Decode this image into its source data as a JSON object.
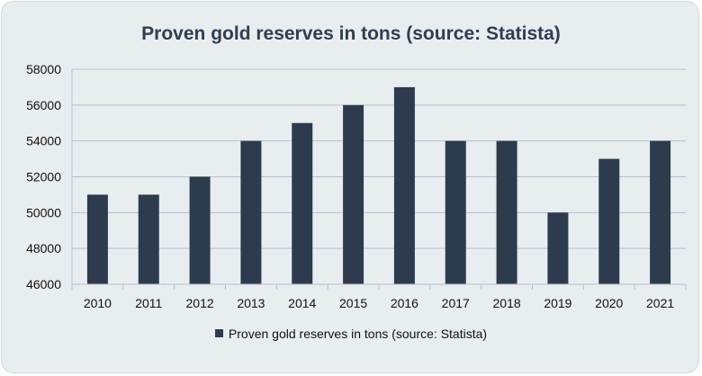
{
  "chart_data": {
    "type": "bar",
    "title": "Proven gold reserves in tons (source: Statista)",
    "categories": [
      "2010",
      "2011",
      "2012",
      "2013",
      "2014",
      "2015",
      "2016",
      "2017",
      "2018",
      "2019",
      "2020",
      "2021"
    ],
    "series": [
      {
        "name": "Proven gold reserves in tons (source: Statista)",
        "values": [
          51000,
          51000,
          52000,
          54000,
          55000,
          56000,
          57000,
          54000,
          54000,
          50000,
          53000,
          54000
        ]
      }
    ],
    "ylim": [
      46000,
      58000
    ],
    "yticks": [
      46000,
      48000,
      50000,
      52000,
      54000,
      56000,
      58000
    ],
    "xlabel": "",
    "ylabel": "",
    "grid": true,
    "legend_position": "bottom",
    "colors": {
      "bar": "#2d3b4e",
      "grid": "#b8bfc5",
      "background": "#e8edf0",
      "title": "#2f3e52"
    }
  }
}
